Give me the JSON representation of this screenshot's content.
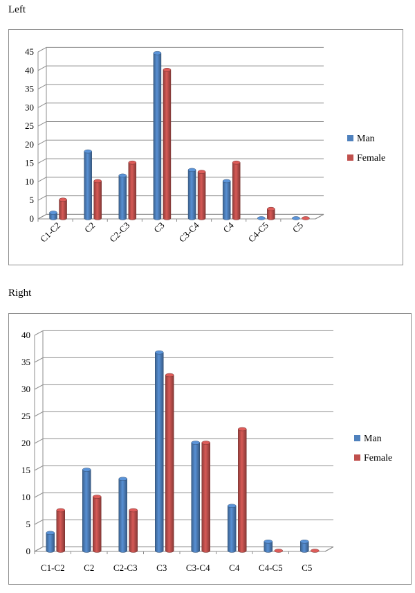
{
  "panels": [
    {
      "title": "Left"
    },
    {
      "title": "Right"
    }
  ],
  "colors": {
    "man": "#4f81bd",
    "female": "#c0504d",
    "grid": "#8c8c8c"
  },
  "chart_data": [
    {
      "type": "bar",
      "title": "Left",
      "categories": [
        "C1-C2",
        "C2",
        "C2-C3",
        "C3",
        "C3-C4",
        "C4",
        "C4-C5",
        "C5"
      ],
      "series": [
        {
          "name": "Man",
          "values": [
            1.5,
            18,
            11.5,
            44.5,
            13,
            10,
            0,
            0
          ]
        },
        {
          "name": "Female",
          "values": [
            5,
            10,
            15,
            40,
            12.5,
            15,
            2.5,
            0
          ]
        }
      ],
      "yticks": [
        0,
        5,
        10,
        15,
        20,
        25,
        30,
        35,
        40,
        45
      ],
      "ylim": [
        0,
        45
      ],
      "grid": true,
      "legend_position": "right",
      "xlabel_rotation": "diagonal"
    },
    {
      "type": "bar",
      "title": "Right",
      "categories": [
        "C1-C2",
        "C2",
        "C2-C3",
        "C3",
        "C3-C4",
        "C4",
        "C4-C5",
        "C5"
      ],
      "series": [
        {
          "name": "Man",
          "values": [
            3.3,
            15,
            13.3,
            36.7,
            20,
            8.3,
            1.7,
            1.7
          ]
        },
        {
          "name": "Female",
          "values": [
            7.5,
            10,
            7.5,
            32.5,
            20,
            22.5,
            0,
            0
          ]
        }
      ],
      "yticks": [
        0,
        5,
        10,
        15,
        20,
        25,
        30,
        35,
        40
      ],
      "ylim": [
        0,
        40
      ],
      "grid": true,
      "legend_position": "right",
      "xlabel_rotation": "horizontal"
    }
  ]
}
